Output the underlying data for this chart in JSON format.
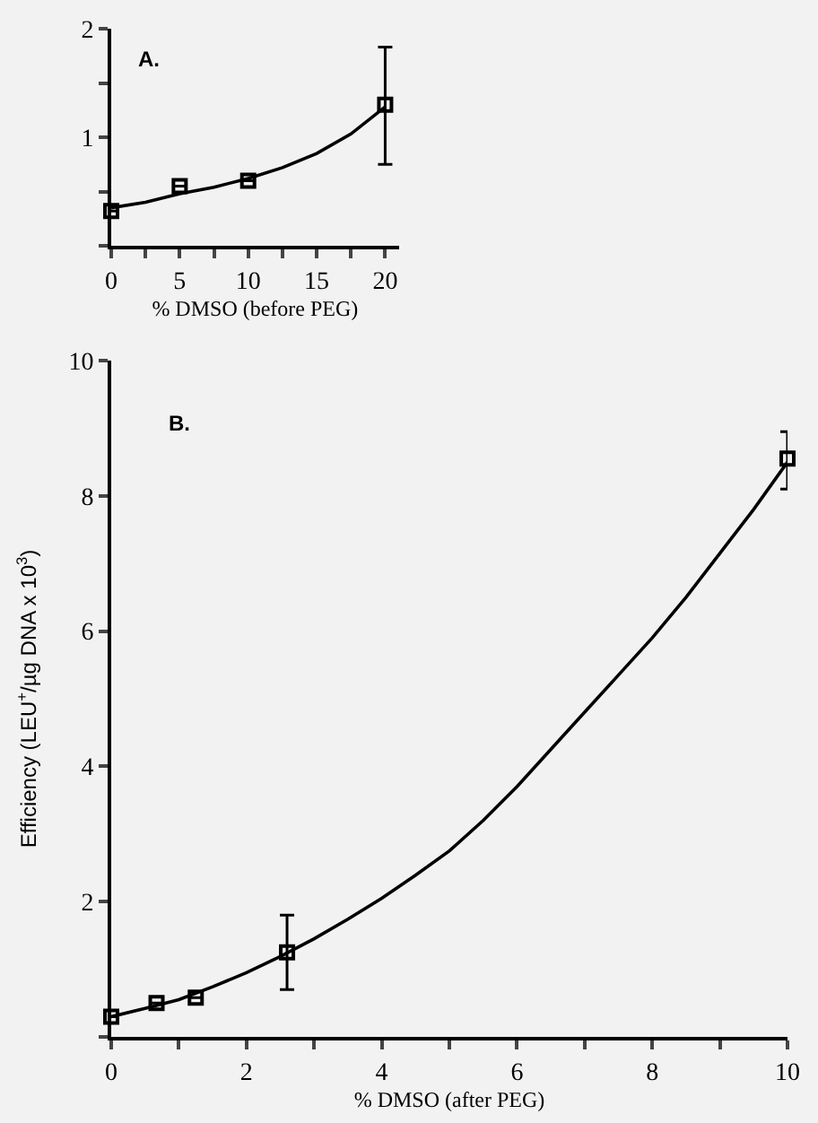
{
  "chart_data": [
    {
      "type": "scatter",
      "xlabel": "% DMSO (before PEG)",
      "annotations": [
        "A."
      ],
      "marker": "square",
      "grid": false,
      "xlim": [
        0,
        21
      ],
      "xticks": [
        0,
        {
          "value": 2.5,
          "label": null
        },
        5,
        {
          "value": 7.5,
          "label": null
        },
        10,
        {
          "value": 12.5,
          "label": null
        },
        15,
        {
          "value": 17.5,
          "label": null
        },
        20
      ],
      "ylim": [
        0,
        2
      ],
      "yticks": [
        {
          "value": 0,
          "label": null
        },
        {
          "value": 0.5,
          "label": null
        },
        1,
        {
          "value": 1.5,
          "label": null
        },
        2
      ],
      "series": [
        {
          "color": "#000000",
          "x": [
            0,
            5,
            10,
            20
          ],
          "values": [
            0.32,
            0.55,
            0.6,
            1.3
          ],
          "errors": [
            null,
            null,
            null,
            [
              0.75,
              1.83
            ]
          ]
        },
        {
          "type": "line",
          "color": "#000000",
          "marker": "none",
          "x": [
            0,
            2.5,
            5,
            7.5,
            10,
            12.5,
            15,
            17.5,
            20
          ],
          "values": [
            0.35,
            0.4,
            0.48,
            0.54,
            0.62,
            0.72,
            0.85,
            1.03,
            1.28
          ]
        }
      ]
    },
    {
      "type": "scatter",
      "xlabel": "% DMSO (after PEG)",
      "ylabel": "Efficiency (LEU$^{+}$/µg DNA x 10$^{3}$)",
      "annotations": [
        "B."
      ],
      "marker": "square",
      "grid": false,
      "xlim": [
        0,
        10
      ],
      "xticks": [
        0,
        {
          "value": 1,
          "label": null
        },
        2,
        {
          "value": 3,
          "label": null
        },
        4,
        {
          "value": 5,
          "label": null
        },
        6,
        {
          "value": 7,
          "label": null
        },
        8,
        {
          "value": 9,
          "label": null
        },
        10
      ],
      "ylim": [
        0,
        10
      ],
      "yticks": [
        {
          "value": 0,
          "label": null
        },
        2,
        4,
        6,
        8,
        10
      ],
      "series": [
        {
          "color": "#000000",
          "x": [
            0,
            0.67,
            1.25,
            2.6,
            10
          ],
          "values": [
            0.3,
            0.5,
            0.58,
            1.25,
            8.55
          ],
          "errors": [
            null,
            null,
            null,
            [
              0.7,
              1.8
            ],
            [
              8.1,
              8.95
            ]
          ]
        },
        {
          "type": "line",
          "color": "#000000",
          "marker": "none",
          "x": [
            0,
            0.5,
            1,
            1.5,
            2,
            2.5,
            3,
            3.5,
            4,
            4.5,
            5,
            5.5,
            6,
            6.5,
            7,
            7.5,
            8,
            8.5,
            9,
            9.5,
            10
          ],
          "values": [
            0.3,
            0.42,
            0.55,
            0.74,
            0.95,
            1.19,
            1.45,
            1.74,
            2.05,
            2.39,
            2.75,
            3.2,
            3.7,
            4.25,
            4.8,
            5.35,
            5.9,
            6.5,
            7.15,
            7.8,
            8.5
          ]
        }
      ]
    }
  ]
}
